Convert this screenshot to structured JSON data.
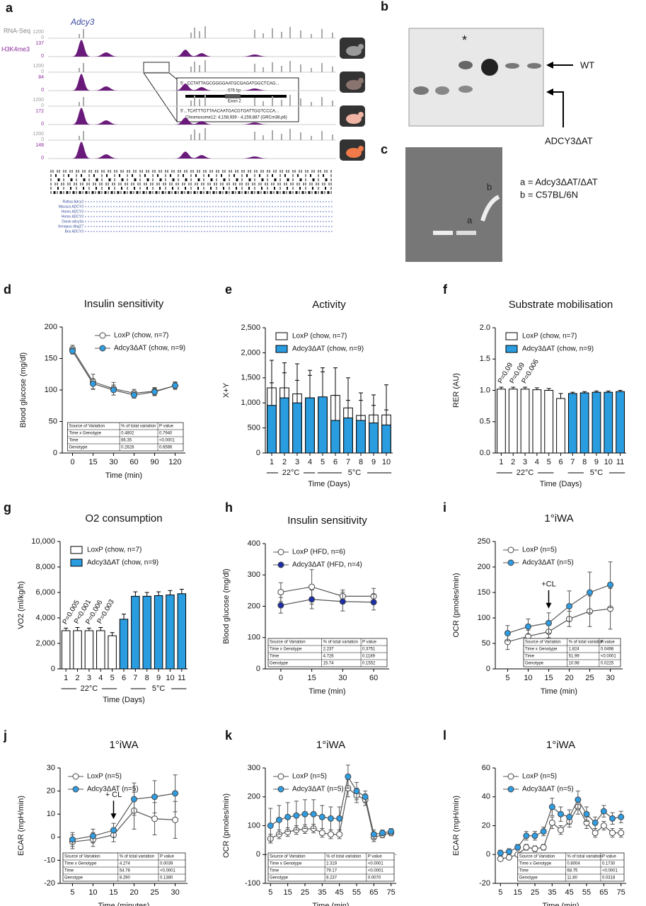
{
  "panel_a": {
    "label": "a",
    "gene": "Adcy3",
    "track_names": [
      "RNA-Seq",
      "H3K4me3"
    ],
    "scales": [
      [
        "1200",
        "0",
        "137",
        "0"
      ],
      [
        "1200",
        "0",
        "84",
        "0"
      ],
      [
        "1200",
        "0",
        "172",
        "0"
      ],
      [
        "1200",
        "0",
        "148",
        "0"
      ]
    ],
    "inset": {
      "sequence_top": "5'...CCTATTAGCGGGGAATGCGAGATGGCTCAG...",
      "length": "976 bp",
      "exon": "Exon 2",
      "sequence_bottom": "5'...TCATTTGTTAACAATGACGTGATTGGTCCCA...",
      "location": "Chromosome12: 4,158,939 - 4,159,887 (GRCm38.p6)"
    },
    "species": [
      "Rattus Adcy3",
      "Macaca ADCY3",
      "Homo ADCY3",
      "Homo ADCY3",
      "Danio adcy3a",
      "Xenopus dhaj27",
      "Bos ADCY3"
    ]
  },
  "panel_b": {
    "label": "b",
    "asterisk": "*",
    "wt": "WT",
    "mutant": "ADCY3ΔAT"
  },
  "panel_c": {
    "label": "c",
    "lane_a": "a",
    "lane_b": "b",
    "legend": [
      "a = Adcy3ΔAT/ΔAT",
      "b = C57BL/6N"
    ]
  },
  "chart_data": [
    {
      "type": "line",
      "panel": "d",
      "title": "Insulin sensitivity",
      "xlabel": "Time (min)",
      "ylabel": "Blood glucose (mg/dl)",
      "categories": [
        0,
        15,
        30,
        60,
        90,
        120
      ],
      "ylim": [
        0,
        200
      ],
      "yticks": [
        0,
        50,
        100,
        150,
        200
      ],
      "series": [
        {
          "name": "LoxP (chow, n=7)",
          "color": "#ffffff",
          "values": [
            165,
            113,
            102,
            95,
            98,
            107
          ],
          "errors": [
            6,
            12,
            10,
            6,
            6,
            6
          ]
        },
        {
          "name": "Adcy3ΔAT (chow, n=9)",
          "color": "#2f9de2",
          "values": [
            162,
            110,
            100,
            92,
            97,
            107
          ],
          "errors": [
            5,
            8,
            8,
            5,
            6,
            5
          ]
        }
      ],
      "stats_table": {
        "header": [
          "Source of Variation",
          "% of total variation",
          "P value"
        ],
        "rows": [
          [
            "Time x Genotype",
            "0.4802",
            "0.7940"
          ],
          [
            "Time",
            "66.35",
            "<0.0001"
          ],
          [
            "Genotype",
            "0.2628",
            "0.6566"
          ]
        ]
      }
    },
    {
      "type": "bar",
      "panel": "e",
      "title": "Activity",
      "xlabel": "Time (Days)",
      "ylabel": "X+Y",
      "categories": [
        1,
        2,
        3,
        4,
        5,
        6,
        7,
        8,
        9,
        10
      ],
      "ylim": [
        0,
        2500
      ],
      "yticks": [
        0,
        500,
        {
          "value": 1000,
          "label": "1,000"
        },
        {
          "value": 1500,
          "label": "1,500"
        },
        {
          "value": 2000,
          "label": "2,000"
        },
        {
          "value": 2500,
          "label": "2,500"
        }
      ],
      "group_labels": [
        "22°C",
        "5°C"
      ],
      "series": [
        {
          "name": "LoxP (chow, n=7)",
          "color": "#ffffff",
          "values": [
            1300,
            1300,
            1180,
            1100,
            1100,
            1150,
            900,
            750,
            760,
            760
          ],
          "errors": [
            550,
            500,
            600,
            450,
            600,
            550,
            600,
            450,
            400,
            600
          ]
        },
        {
          "name": "Adcy3ΔAT (chow, n=9)",
          "color": "#2a9de0",
          "values": [
            950,
            1100,
            1000,
            1100,
            1120,
            650,
            700,
            650,
            600,
            560
          ],
          "errors": [
            450,
            500,
            450,
            550,
            500,
            500,
            350,
            400,
            350,
            300
          ]
        }
      ]
    },
    {
      "type": "bar",
      "panel": "f",
      "title": "Substrate mobilisation",
      "xlabel": "Time (Days)",
      "ylabel": "RER (AU)",
      "categories": [
        1,
        2,
        3,
        4,
        5,
        6,
        7,
        8,
        9,
        10,
        11
      ],
      "ylim": [
        0,
        2
      ],
      "yticks": [
        {
          "value": 0,
          "label": "0.0"
        },
        0.5,
        {
          "value": 1,
          "label": "1.0"
        },
        1.5,
        {
          "value": 2,
          "label": "2.0"
        }
      ],
      "group_labels": [
        "22°C",
        "5°C"
      ],
      "annotations": [
        "P=0.09",
        "P=0.09",
        "P=0.006"
      ],
      "series": [
        {
          "name": "LoxP (chow, n=7)",
          "color": "#ffffff",
          "values": [
            1.02,
            1.02,
            1.02,
            1.01,
            1.0,
            0.87,
            null,
            null,
            null,
            null,
            null
          ],
          "errors": [
            0.03,
            0.03,
            0.03,
            0.03,
            0.03,
            0.08,
            null,
            null,
            null,
            null,
            null
          ]
        },
        {
          "name": "Adcy3ΔAT (chow, n=9)",
          "color": "#2a9de0",
          "values": [
            null,
            null,
            null,
            null,
            null,
            null,
            0.95,
            0.96,
            0.97,
            0.97,
            0.98
          ],
          "errors": [
            null,
            null,
            null,
            null,
            null,
            null,
            0.02,
            0.02,
            0.02,
            0.02,
            0.02
          ]
        }
      ]
    },
    {
      "type": "bar",
      "panel": "g",
      "title": "O2 consumption",
      "xlabel": "Time (Days)",
      "ylabel": "VO2 (ml/kg/h)",
      "categories": [
        1,
        2,
        3,
        4,
        5,
        6,
        7,
        8,
        9,
        10,
        11
      ],
      "ylim": [
        0,
        10000
      ],
      "yticks": [
        0,
        {
          "value": 2000,
          "label": "2,000"
        },
        {
          "value": 4000,
          "label": "4,000"
        },
        {
          "value": 6000,
          "label": "6,000"
        },
        {
          "value": 8000,
          "label": "8,000"
        },
        {
          "value": 10000,
          "label": "10,000"
        }
      ],
      "group_labels": [
        "22°C",
        "5°C"
      ],
      "annotations": [
        "P=0.005",
        "P<0.001",
        "P=0.006",
        "P=0.003"
      ],
      "series": [
        {
          "name": "LoxP (chow, n=7)",
          "color": "#ffffff",
          "values": [
            3000,
            3000,
            3000,
            3000,
            2600,
            null,
            null,
            null,
            null,
            null,
            null
          ],
          "errors": [
            200,
            250,
            200,
            250,
            250,
            null,
            null,
            null,
            null,
            null,
            null
          ]
        },
        {
          "name": "Adcy3ΔAT (chow, n=9)",
          "color": "#2a9de0",
          "values": [
            null,
            null,
            null,
            null,
            null,
            3900,
            5700,
            5700,
            5750,
            5800,
            5900
          ],
          "errors": [
            null,
            null,
            null,
            null,
            null,
            400,
            350,
            300,
            300,
            350,
            350
          ]
        }
      ]
    },
    {
      "type": "line",
      "panel": "h",
      "title": "Insulin sensitivity",
      "xlabel": "Time (min)",
      "ylabel": "Blood glucose (mg/dl)",
      "categories": [
        0,
        15,
        30,
        60
      ],
      "ylim": [
        0,
        400
      ],
      "yticks": [
        0,
        100,
        200,
        300,
        400
      ],
      "series": [
        {
          "name": "LoxP (HFD, n=6)",
          "color": "#ffffff",
          "values": [
            245,
            262,
            232,
            232
          ],
          "errors": [
            30,
            55,
            20,
            25
          ]
        },
        {
          "name": "Adcy3ΔAT (HFD, n=4)",
          "color": "#1c2fa8",
          "values": [
            203,
            222,
            215,
            213
          ],
          "errors": [
            25,
            30,
            30,
            25
          ]
        }
      ],
      "stats_table": {
        "header": [
          "Source of Variation",
          "% of total variation",
          "P value"
        ],
        "rows": [
          [
            "Time x Genotype",
            "2.237",
            "0.3751"
          ],
          [
            "Time",
            "4.726",
            "0.1189"
          ],
          [
            "Genotype",
            "15.74",
            "0.1552"
          ]
        ]
      }
    },
    {
      "type": "line",
      "panel": "i",
      "title": "1°iWA",
      "xlabel": "Time (min)",
      "ylabel": "OCR (pmoles/min)",
      "x": [
        5,
        10,
        15,
        20,
        25,
        30
      ],
      "xlim": [
        2,
        33
      ],
      "xticks": [
        5,
        10,
        15,
        20,
        25,
        30
      ],
      "ylim": [
        0,
        250
      ],
      "yticks": [
        0,
        50,
        100,
        150,
        200,
        250
      ],
      "arrow_label": "+CL",
      "series": [
        {
          "name": "LoxP (n=5)",
          "color": "#ffffff",
          "values": [
            53,
            64,
            73,
            98,
            113,
            118
          ],
          "errors": [
            15,
            12,
            12,
            15,
            30,
            40
          ]
        },
        {
          "name": "Adcy3ΔAT (n=5)",
          "color": "#2f9de2",
          "values": [
            70,
            83,
            90,
            123,
            150,
            165
          ],
          "errors": [
            15,
            15,
            20,
            30,
            40,
            45
          ]
        }
      ],
      "stats_table": {
        "header": [
          "Source of Variation",
          "% of total variation",
          "P value"
        ],
        "rows": [
          [
            "Time x Genotype",
            "1.824",
            "0.0498"
          ],
          [
            "Time",
            "51.99",
            "<0.0001"
          ],
          [
            "Genotype",
            "10.98",
            "0.0225"
          ]
        ]
      }
    },
    {
      "type": "line",
      "panel": "j",
      "title": "1°iWA",
      "xlabel": "Time (minutes)",
      "ylabel": "ECAR (mpH/min)",
      "x": [
        5,
        10,
        15,
        20,
        25,
        30
      ],
      "xlim": [
        2,
        33
      ],
      "xticks": [
        5,
        10,
        15,
        20,
        25,
        30
      ],
      "ylim": [
        -20,
        30
      ],
      "yticks": [
        -20,
        -10,
        0,
        10,
        20,
        30
      ],
      "arrow_label": "+ CL",
      "series": [
        {
          "name": "LoxP (n=5)",
          "color": "#ffffff",
          "values": [
            -2,
            -1,
            1,
            11.5,
            8,
            7.5
          ],
          "errors": [
            3,
            3,
            3,
            8,
            7,
            8
          ]
        },
        {
          "name": "Adcy3ΔAT (n=5)",
          "color": "#2f9de2",
          "values": [
            -1,
            0.5,
            3,
            16.5,
            17.5,
            19
          ],
          "errors": [
            3,
            3,
            3,
            7,
            7,
            8
          ]
        }
      ],
      "stats_table": {
        "header": [
          "Source of Variation",
          "% of total variation",
          "P value"
        ],
        "rows": [
          [
            "Time x Genotype",
            "4.274",
            "0.0039"
          ],
          [
            "Time",
            "54.78",
            "<0.0001"
          ],
          [
            "Genotype",
            "8.290",
            "0.1380"
          ]
        ]
      }
    },
    {
      "type": "line",
      "panel": "k",
      "title": "1°iWA",
      "xlabel": "Time (min)",
      "ylabel": "OCR (pmoles/min)",
      "x": [
        5,
        10,
        15,
        20,
        25,
        30,
        35,
        40,
        45,
        50,
        55,
        60,
        65,
        70,
        75
      ],
      "xlim": [
        2,
        78
      ],
      "xticks": [
        5,
        15,
        25,
        35,
        45,
        55,
        65,
        75
      ],
      "ylim": [
        -100,
        300
      ],
      "yticks": [
        -100,
        0,
        100,
        200,
        300
      ],
      "zero_line": true,
      "series": [
        {
          "name": "LoxP (n=5)",
          "color": "#ffffff",
          "values": [
            55,
            70,
            78,
            85,
            88,
            90,
            75,
            70,
            70,
            230,
            205,
            190,
            60,
            68,
            75
          ],
          "errors": [
            15,
            15,
            15,
            15,
            15,
            15,
            15,
            15,
            15,
            30,
            25,
            20,
            15,
            10,
            10
          ]
        },
        {
          "name": "Adcy3ΔAT (n=5)",
          "color": "#2f9de2",
          "values": [
            100,
            120,
            130,
            135,
            140,
            140,
            130,
            125,
            125,
            270,
            220,
            200,
            70,
            75,
            80
          ],
          "errors": [
            60,
            50,
            50,
            50,
            50,
            50,
            40,
            40,
            40,
            40,
            30,
            20,
            15,
            10,
            10
          ]
        }
      ],
      "stats_table": {
        "header": [
          "Source of Variation",
          "% of total variation",
          "P value"
        ],
        "rows": [
          [
            "Time x Genotype",
            "2.319",
            "<0.0001"
          ],
          [
            "Time",
            "79.17",
            "<0.0001"
          ],
          [
            "Genotype",
            "8.237",
            "0.0070"
          ]
        ]
      }
    },
    {
      "type": "line",
      "panel": "l",
      "title": "1°iWA",
      "xlabel": "Time (min)",
      "ylabel": "ECAR (mpH/min)",
      "x": [
        5,
        10,
        15,
        20,
        25,
        30,
        35,
        40,
        45,
        50,
        55,
        60,
        65,
        70,
        75
      ],
      "xlim": [
        2,
        78
      ],
      "xticks": [
        5,
        15,
        25,
        35,
        45,
        55,
        65,
        75
      ],
      "ylim": [
        -20,
        60
      ],
      "yticks": [
        -20,
        0,
        20,
        40,
        60
      ],
      "series": [
        {
          "name": "LoxP (n=5)",
          "color": "#ffffff",
          "values": [
            -3,
            -2,
            0,
            5,
            4,
            5,
            22,
            17,
            23,
            33,
            22,
            15,
            20,
            15,
            15
          ],
          "errors": [
            1,
            1,
            1,
            2,
            2,
            2,
            4,
            3,
            4,
            5,
            4,
            3,
            3,
            3,
            3
          ]
        },
        {
          "name": "Adcy3ΔAT (n=5)",
          "color": "#2f9de2",
          "values": [
            1,
            2,
            5,
            13,
            13,
            16,
            33,
            28,
            26,
            38,
            28,
            22,
            30,
            25,
            26
          ],
          "errors": [
            2,
            2,
            2,
            3,
            3,
            3,
            6,
            5,
            5,
            6,
            5,
            4,
            4,
            4,
            4
          ]
        }
      ],
      "stats_table": {
        "header": [
          "Source of Variation",
          "% of total variation",
          "P value"
        ],
        "rows": [
          [
            "Time x Genotype",
            "0.8004",
            "0.1730"
          ],
          [
            "Time",
            "68.75",
            "<0.0001"
          ],
          [
            "Genotype",
            "11.80",
            "0.0318"
          ]
        ]
      }
    }
  ]
}
